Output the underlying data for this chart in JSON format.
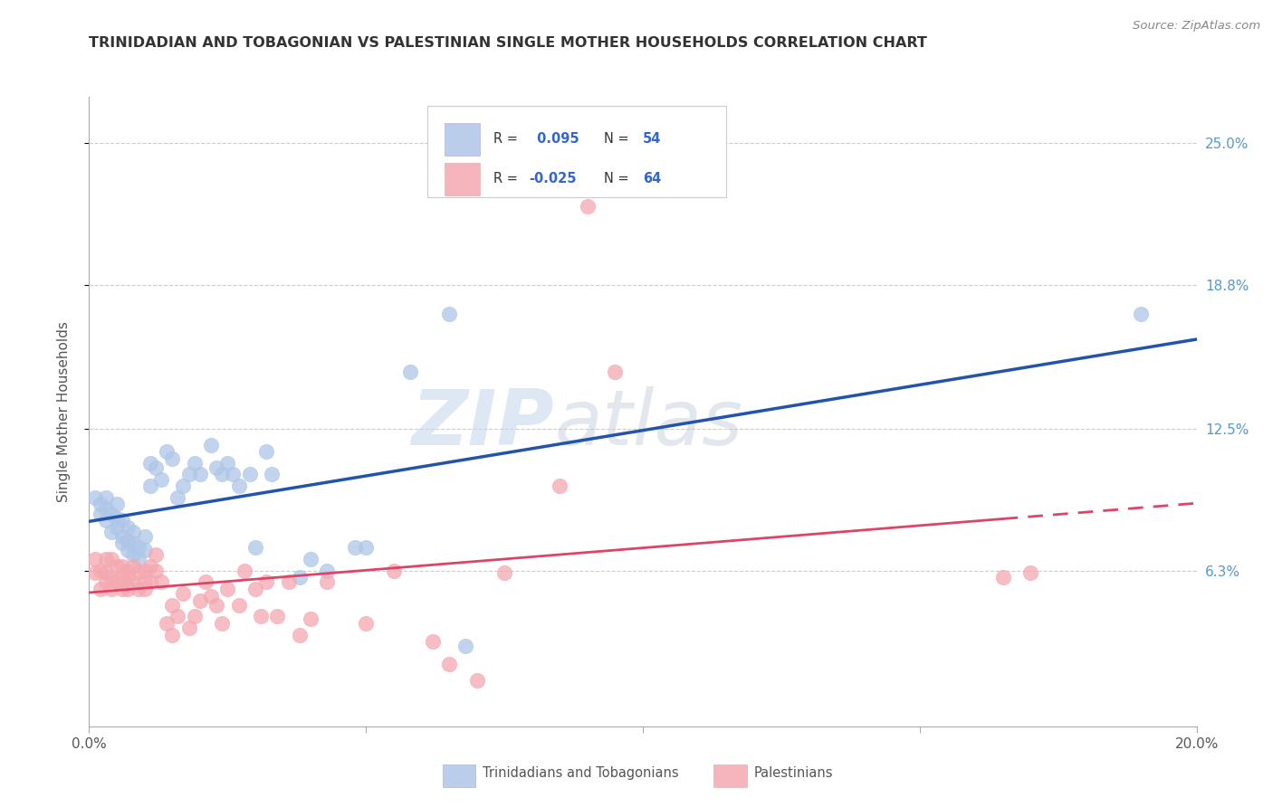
{
  "title": "TRINIDADIAN AND TOBAGONIAN VS PALESTINIAN SINGLE MOTHER HOUSEHOLDS CORRELATION CHART",
  "source": "Source: ZipAtlas.com",
  "ylabel_label": "Single Mother Households",
  "xlim": [
    0.0,
    0.2
  ],
  "ylim": [
    -0.005,
    0.27
  ],
  "xtick_positions": [
    0.0,
    0.05,
    0.1,
    0.15,
    0.2
  ],
  "xticklabels": [
    "0.0%",
    "",
    "",
    "",
    "20.0%"
  ],
  "ytick_positions": [
    0.063,
    0.125,
    0.188,
    0.25
  ],
  "yticklabels": [
    "6.3%",
    "12.5%",
    "18.8%",
    "25.0%"
  ],
  "blue_color": "#aec6e8",
  "pink_color": "#f4a8b0",
  "blue_line_color": "#2255aa",
  "pink_line_color": "#dd4466",
  "background_color": "#ffffff",
  "grid_color": "#cccccc",
  "title_color": "#333333",
  "axis_label_color": "#555555",
  "right_tick_color": "#5599cc",
  "watermark_color": "#ddeeff",
  "legend_val_color": "#3366cc",
  "legend_text_color": "#333333",
  "blue_scatter_x": [
    0.001,
    0.002,
    0.002,
    0.003,
    0.003,
    0.003,
    0.004,
    0.004,
    0.005,
    0.005,
    0.005,
    0.006,
    0.006,
    0.006,
    0.007,
    0.007,
    0.007,
    0.008,
    0.008,
    0.008,
    0.009,
    0.009,
    0.01,
    0.01,
    0.011,
    0.011,
    0.012,
    0.013,
    0.014,
    0.015,
    0.016,
    0.017,
    0.018,
    0.019,
    0.02,
    0.022,
    0.023,
    0.024,
    0.025,
    0.026,
    0.027,
    0.029,
    0.03,
    0.032,
    0.033,
    0.038,
    0.04,
    0.043,
    0.048,
    0.05,
    0.058,
    0.065,
    0.068,
    0.19
  ],
  "blue_scatter_y": [
    0.095,
    0.088,
    0.092,
    0.085,
    0.09,
    0.095,
    0.08,
    0.088,
    0.082,
    0.086,
    0.092,
    0.075,
    0.078,
    0.085,
    0.072,
    0.076,
    0.082,
    0.07,
    0.075,
    0.08,
    0.068,
    0.073,
    0.072,
    0.078,
    0.1,
    0.11,
    0.108,
    0.103,
    0.115,
    0.112,
    0.095,
    0.1,
    0.105,
    0.11,
    0.105,
    0.118,
    0.108,
    0.105,
    0.11,
    0.105,
    0.1,
    0.105,
    0.073,
    0.115,
    0.105,
    0.06,
    0.068,
    0.063,
    0.073,
    0.073,
    0.15,
    0.175,
    0.03,
    0.175
  ],
  "pink_scatter_x": [
    0.001,
    0.001,
    0.002,
    0.002,
    0.003,
    0.003,
    0.003,
    0.004,
    0.004,
    0.004,
    0.005,
    0.005,
    0.006,
    0.006,
    0.006,
    0.007,
    0.007,
    0.007,
    0.008,
    0.008,
    0.009,
    0.009,
    0.01,
    0.01,
    0.01,
    0.011,
    0.011,
    0.012,
    0.012,
    0.013,
    0.014,
    0.015,
    0.015,
    0.016,
    0.017,
    0.018,
    0.019,
    0.02,
    0.021,
    0.022,
    0.023,
    0.024,
    0.025,
    0.027,
    0.028,
    0.03,
    0.031,
    0.032,
    0.034,
    0.036,
    0.038,
    0.04,
    0.043,
    0.05,
    0.055,
    0.062,
    0.065,
    0.07,
    0.075,
    0.085,
    0.09,
    0.095,
    0.165,
    0.17
  ],
  "pink_scatter_y": [
    0.062,
    0.068,
    0.055,
    0.063,
    0.058,
    0.062,
    0.068,
    0.055,
    0.06,
    0.068,
    0.058,
    0.065,
    0.06,
    0.065,
    0.055,
    0.06,
    0.055,
    0.063,
    0.058,
    0.065,
    0.055,
    0.062,
    0.058,
    0.055,
    0.063,
    0.058,
    0.065,
    0.063,
    0.07,
    0.058,
    0.04,
    0.048,
    0.035,
    0.043,
    0.053,
    0.038,
    0.043,
    0.05,
    0.058,
    0.052,
    0.048,
    0.04,
    0.055,
    0.048,
    0.063,
    0.055,
    0.043,
    0.058,
    0.043,
    0.058,
    0.035,
    0.042,
    0.058,
    0.04,
    0.063,
    0.032,
    0.022,
    0.015,
    0.062,
    0.1,
    0.222,
    0.15,
    0.06,
    0.062
  ],
  "legend_labels": [
    "Trinidadians and Tobagonians",
    "Palestinians"
  ],
  "watermark_zip": "ZIP",
  "watermark_atlas": "atlas"
}
